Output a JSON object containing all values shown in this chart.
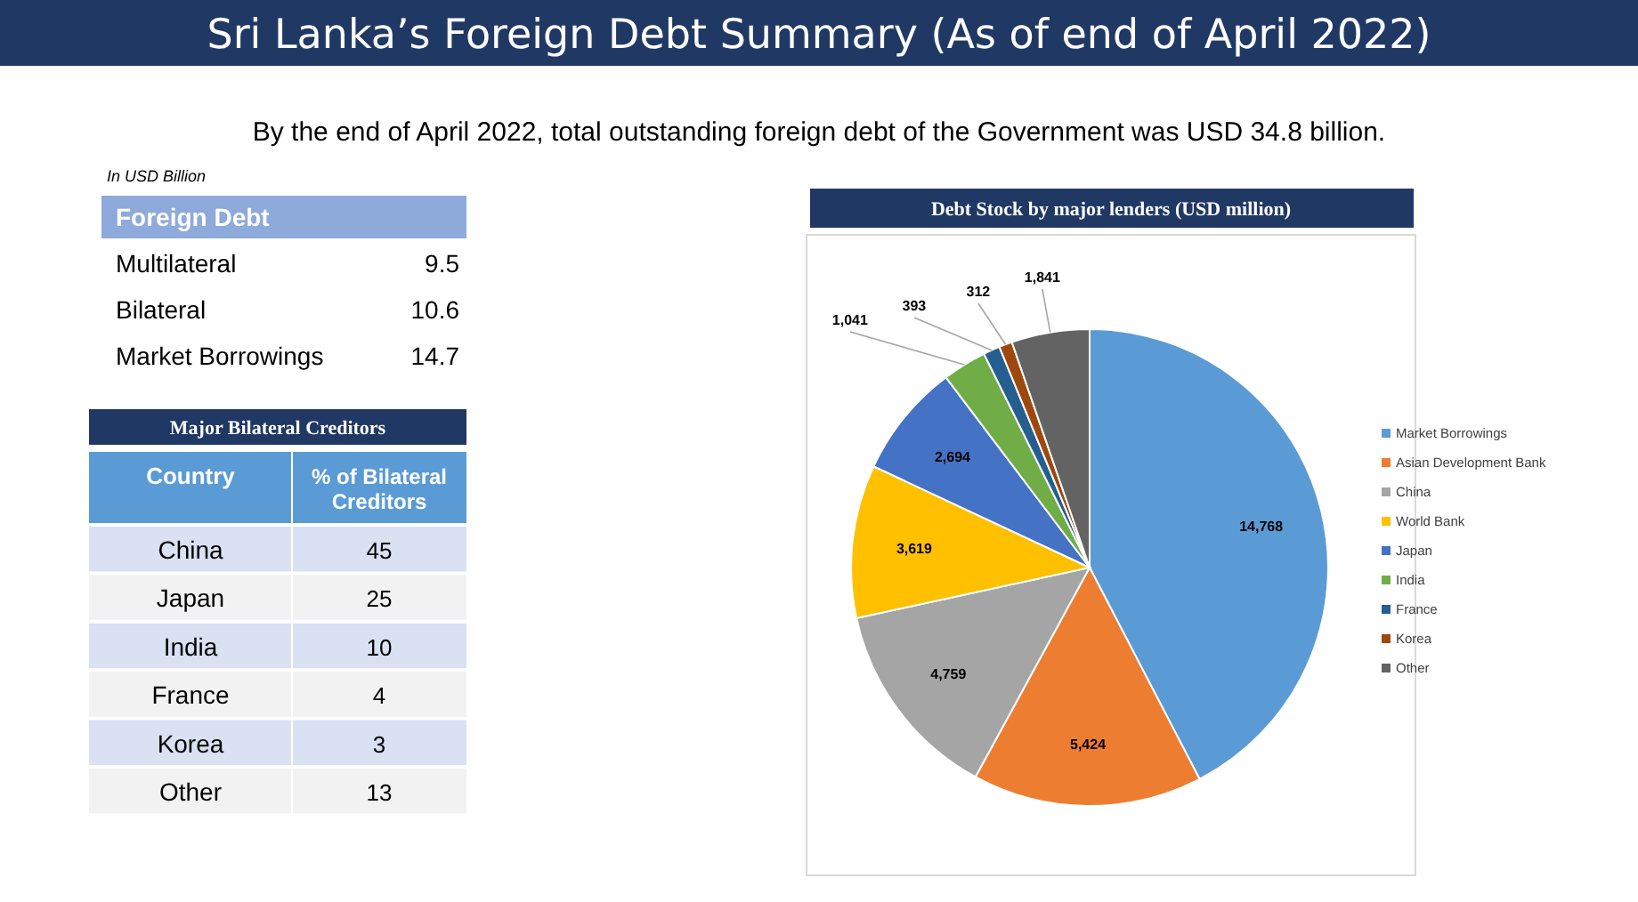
{
  "chart_data": [
    {
      "type": "other",
      "title": "Sri Lanka’s Foreign Debt Summary (As of end of April 2022)",
      "subtitle": "By the end of April 2022, total outstanding foreign debt of the Government was USD 34.8 billion.",
      "annotations": [
        "In USD Billion"
      ],
      "xlabel": "Foreign Debt",
      "categories": [
        "Multilateral",
        "Bilateral",
        "Market Borrowings"
      ],
      "values": [
        9.5,
        10.6,
        14.7
      ],
      "data_labels": true
    },
    {
      "type": "other",
      "title": "Major Bilateral Creditors",
      "xlabel": "Country",
      "ylabel": "% of Bilateral Creditors",
      "categories": [
        "China",
        "Japan",
        "India",
        "France",
        "Korea",
        "Other"
      ],
      "values": [
        45,
        25,
        10,
        4,
        3,
        13
      ],
      "data_labels": true
    },
    {
      "type": "pie",
      "title": "Debt Stock by major lenders (USD million)",
      "categories": [
        "Market Borrowings",
        "Asian Development Bank",
        "China",
        "World Bank",
        "Japan",
        "India",
        "France",
        "Korea",
        "Other"
      ],
      "values": [
        14768,
        5424,
        4759,
        3619,
        2694,
        1041,
        393,
        312,
        1841
      ],
      "colors": [
        "#5b9bd5",
        "#ed7d31",
        "#a5a5a5",
        "#ffc000",
        "#4472c4",
        "#70ad47",
        "#255e91",
        "#9e480e",
        "#636363"
      ],
      "value_labels": [
        "14,768",
        "5,424",
        "4,759",
        "3,619",
        "2,694",
        "1,041",
        "393",
        "312",
        "1,841"
      ],
      "legend": "right"
    }
  ]
}
